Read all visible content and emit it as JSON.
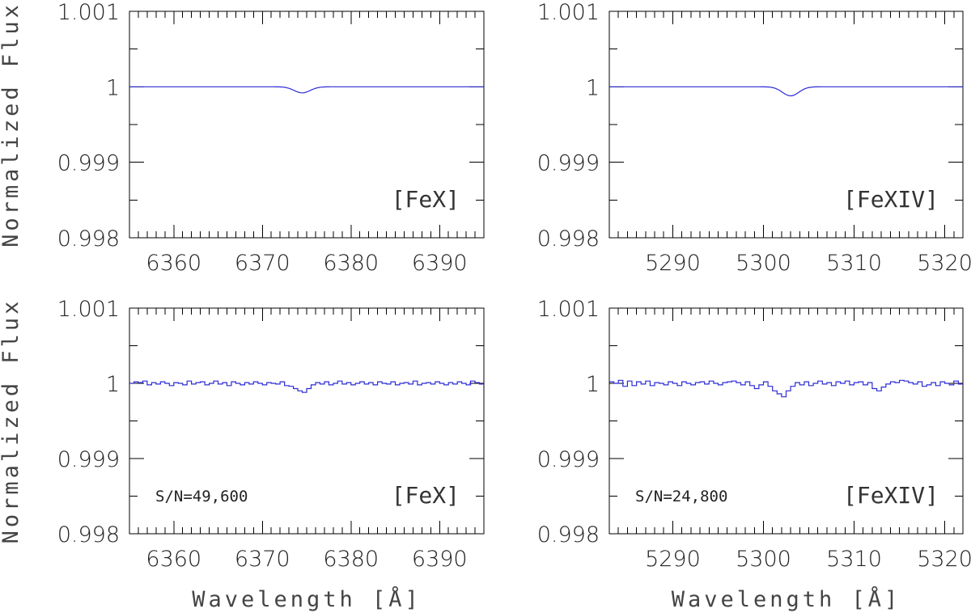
{
  "chart_data": [
    {
      "type": "line",
      "panel": "top-left",
      "xlabel": "",
      "ylabel": "Normalized Flux",
      "xlim": [
        6355,
        6395
      ],
      "ylim": [
        0.998,
        1.001
      ],
      "xticks": [
        6360,
        6370,
        6380,
        6390
      ],
      "yticks": [
        "0.998",
        "0.999",
        "1",
        "1.001"
      ],
      "annotations": {
        "species": "[FeX]",
        "sn": ""
      },
      "line_center": 6374.5,
      "line_depth": 8e-05,
      "step": false,
      "color": "#2b2bd6"
    },
    {
      "type": "line",
      "panel": "top-right",
      "xlabel": "",
      "ylabel": "",
      "xlim": [
        5283,
        5322
      ],
      "ylim": [
        0.998,
        1.001
      ],
      "xticks": [
        5290,
        5300,
        5310,
        5320
      ],
      "yticks": [
        "0.998",
        "0.999",
        "1",
        "1.001"
      ],
      "annotations": {
        "species": "[FeXIV]",
        "sn": ""
      },
      "line_center": 5303.0,
      "line_depth": 0.00012,
      "step": false,
      "color": "#2b2bd6"
    },
    {
      "type": "line",
      "panel": "bottom-left",
      "xlabel": "Wavelength [Å]",
      "ylabel": "Normalized Flux",
      "xlim": [
        6355,
        6395
      ],
      "ylim": [
        0.998,
        1.001
      ],
      "xticks": [
        6360,
        6370,
        6380,
        6390
      ],
      "yticks": [
        "0.998",
        "0.999",
        "1",
        "1.001"
      ],
      "annotations": {
        "species": "[FeX]",
        "sn": "S/N=49,600"
      },
      "step": true,
      "color": "#2b2bd6",
      "x": [
        6355.0,
        6355.5,
        6356.0,
        6356.5,
        6357.0,
        6357.5,
        6358.0,
        6358.5,
        6359.0,
        6359.5,
        6360.0,
        6360.5,
        6361.0,
        6361.5,
        6362.0,
        6362.5,
        6363.0,
        6363.5,
        6364.0,
        6364.5,
        6365.0,
        6365.5,
        6366.0,
        6366.5,
        6367.0,
        6367.5,
        6368.0,
        6368.5,
        6369.0,
        6369.5,
        6370.0,
        6370.5,
        6371.0,
        6371.5,
        6372.0,
        6372.5,
        6373.0,
        6373.5,
        6374.0,
        6374.5,
        6375.0,
        6375.5,
        6376.0,
        6376.5,
        6377.0,
        6377.5,
        6378.0,
        6378.5,
        6379.0,
        6379.5,
        6380.0,
        6380.5,
        6381.0,
        6381.5,
        6382.0,
        6382.5,
        6383.0,
        6383.5,
        6384.0,
        6384.5,
        6385.0,
        6385.5,
        6386.0,
        6386.5,
        6387.0,
        6387.5,
        6388.0,
        6388.5,
        6389.0,
        6389.5,
        6390.0,
        6390.5,
        6391.0,
        6391.5,
        6392.0,
        6392.5,
        6393.0,
        6393.5,
        6394.0,
        6394.5
      ],
      "y": [
        1.0,
        1.00002,
        1.00001,
        1.00003,
        0.99998,
        1.00001,
        0.99999,
        1.00002,
        1.0,
        0.99997,
        1.00001,
        1.0,
        0.99998,
        1.00003,
        0.99999,
        1.00001,
        1.00002,
        0.99998,
        1.0,
        1.00003,
        0.99999,
        1.00001,
        0.99997,
        1.00002,
        1.0,
        0.99998,
        1.00001,
        0.99999,
        1.00002,
        1.0,
        0.99998,
        1.00001,
        1.0,
        0.99999,
        1.00002,
        0.99997,
        0.99996,
        0.99993,
        0.9999,
        0.99988,
        0.99993,
        0.99998,
        1.00001,
        0.99999,
        1.00002,
        0.99998,
        1.0,
        1.00003,
        0.99999,
        1.00001,
        0.99998,
        1.0,
        1.00002,
        0.99999,
        1.00001,
        0.99998,
        1.00002,
        1.0,
        0.99999,
        1.00002,
        0.99998,
        1.0,
        1.00001,
        0.99999,
        1.00003,
        0.99998,
        1.0,
        1.00001,
        0.99999,
        1.00002,
        1.0,
        0.99998,
        1.00001,
        0.99999,
        1.00002,
        1.0,
        0.99998,
        1.00003,
        1.00001,
        0.99999
      ]
    },
    {
      "type": "line",
      "panel": "bottom-right",
      "xlabel": "Wavelength [Å]",
      "ylabel": "",
      "xlim": [
        5283,
        5322
      ],
      "ylim": [
        0.998,
        1.001
      ],
      "xticks": [
        5290,
        5300,
        5310,
        5320
      ],
      "yticks": [
        "0.998",
        "0.999",
        "1",
        "1.001"
      ],
      "annotations": {
        "species": "[FeXIV]",
        "sn": "S/N=24,800"
      },
      "step": true,
      "color": "#2b2bd6",
      "x": [
        5283.0,
        5283.5,
        5284.0,
        5284.5,
        5285.0,
        5285.5,
        5286.0,
        5286.5,
        5287.0,
        5287.5,
        5288.0,
        5288.5,
        5289.0,
        5289.5,
        5290.0,
        5290.5,
        5291.0,
        5291.5,
        5292.0,
        5292.5,
        5293.0,
        5293.5,
        5294.0,
        5294.5,
        5295.0,
        5295.5,
        5296.0,
        5296.5,
        5297.0,
        5297.5,
        5298.0,
        5298.5,
        5299.0,
        5299.5,
        5300.0,
        5300.5,
        5301.0,
        5301.5,
        5302.0,
        5302.5,
        5303.0,
        5303.5,
        5304.0,
        5304.5,
        5305.0,
        5305.5,
        5306.0,
        5306.5,
        5307.0,
        5307.5,
        5308.0,
        5308.5,
        5309.0,
        5309.5,
        5310.0,
        5310.5,
        5311.0,
        5311.5,
        5312.0,
        5312.5,
        5313.0,
        5313.5,
        5314.0,
        5314.5,
        5315.0,
        5315.5,
        5316.0,
        5316.5,
        5317.0,
        5317.5,
        5318.0,
        5318.5,
        5319.0,
        5319.5,
        5320.0,
        5320.5,
        5321.0,
        5321.5
      ],
      "y": [
        1.00002,
        1.0,
        1.00004,
        0.99996,
        1.00003,
        0.99997,
        1.00002,
        0.99999,
        1.00003,
        0.99997,
        1.00001,
        1.0,
        0.99998,
        1.00002,
        1.0,
        0.99997,
        1.00002,
        1.0,
        0.99998,
        1.00001,
        1.00002,
        0.99999,
        1.00003,
        1.0,
        0.99998,
        1.00001,
        1.00002,
        1.00003,
        1.00001,
        0.99998,
        1.00002,
        0.99997,
        0.99993,
        0.99998,
        1.00002,
        0.99996,
        0.9999,
        0.99986,
        0.99982,
        0.9999,
        0.99996,
        1.00001,
        0.99998,
        1.00002,
        0.99997,
        1.0,
        1.00003,
        0.99999,
        1.00001,
        0.99997,
        1.00002,
        1.0,
        1.00003,
        0.99998,
        1.00001,
        1.00002,
        0.99998,
        1.00001,
        0.99993,
        0.9999,
        0.99995,
        0.99999,
        1.00002,
        1.00001,
        1.00004,
        1.00003,
        1.00001,
        0.99999,
        1.00002,
        0.99996,
        0.99998,
        1.00001,
        0.99997,
        1.00002,
        1.0,
        0.99998,
        1.00003,
        0.99999
      ]
    }
  ]
}
